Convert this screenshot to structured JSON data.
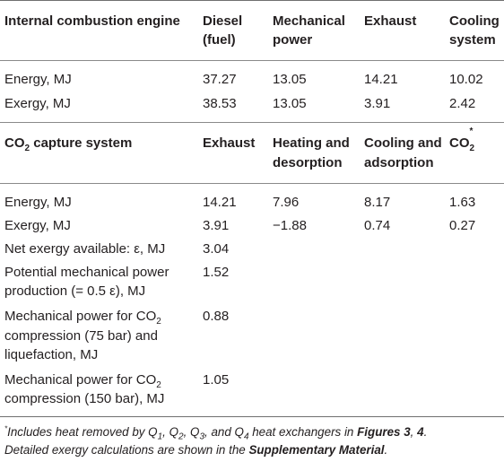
{
  "section1": {
    "headers": {
      "label": "Internal combustion engine",
      "col1": [
        "Diesel",
        "(fuel)"
      ],
      "col2": [
        "Mechanical",
        "power"
      ],
      "col3": "Exhaust",
      "col4": [
        "Cooling",
        "system"
      ]
    },
    "rows": [
      {
        "label": "Energy, MJ",
        "values": [
          "37.27",
          "13.05",
          "14.21",
          "10.02"
        ]
      },
      {
        "label": "Exergy, MJ",
        "values": [
          "38.53",
          "13.05",
          "3.91",
          "2.42"
        ]
      }
    ]
  },
  "section2": {
    "headers": {
      "label_prefix": "CO",
      "label_sub": "2",
      "label_suffix": " capture system",
      "col1": "Exhaust",
      "col2": [
        "Heating and",
        "desorption"
      ],
      "col3": [
        "Cooling and",
        "adsorption"
      ],
      "col4_prefix": "CO",
      "col4_sub": "2",
      "col4_sup": "*"
    },
    "rows": [
      {
        "label": "Energy, MJ",
        "values": [
          "14.21",
          "7.96",
          "8.17",
          "1.63"
        ]
      },
      {
        "label": "Exergy, MJ",
        "values": [
          "3.91",
          "−1.88",
          "0.74",
          "0.27"
        ]
      },
      {
        "label": "Net exergy available: ε, MJ",
        "values": [
          "3.04"
        ]
      }
    ],
    "multiline_rows": [
      {
        "lines": [
          "Potential mechanical power",
          "production (= 0.5 ε), MJ"
        ],
        "value": "1.52"
      },
      {
        "line1_prefix": "Mechanical power for CO",
        "line1_sub": "2",
        "lines_rest": [
          "compression (75 bar) and",
          "liquefaction, MJ"
        ],
        "value": "0.88"
      },
      {
        "line1_prefix": "Mechanical power for CO",
        "line1_sub": "2",
        "lines_rest": [
          "compression (150 bar), MJ"
        ],
        "value": "1.05"
      }
    ]
  },
  "footnote": {
    "marker": "*",
    "line1_a": "Includes heat removed by Q",
    "q1": "1",
    "sep1": ", Q",
    "q2": "2",
    "sep2": ", Q",
    "q3": "3",
    "sep3": ", and Q",
    "q4": "4",
    "line1_b": " heat exchangers in ",
    "line1_bold": "Figures 3",
    "line1_c": ", ",
    "line1_bold2": "4",
    "line1_d": ".",
    "line2_a": "Detailed exergy calculations are shown in the ",
    "line2_bold": "Supplementary Material",
    "line2_b": "."
  }
}
